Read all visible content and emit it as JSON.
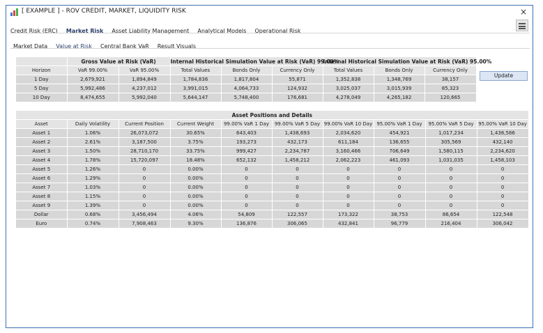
{
  "window": {
    "title": "[ EXAMPLE ] - ROV CREDIT, MARKET, LIQUIDITY RISK",
    "close_glyph": "×"
  },
  "main_tabs": [
    {
      "label": "Credit Risk (ERC)",
      "active": false
    },
    {
      "label": "Market Risk",
      "active": true
    },
    {
      "label": "Asset Liability Management",
      "active": false
    },
    {
      "label": "Analytical Models",
      "active": false
    },
    {
      "label": "Operational Risk",
      "active": false
    }
  ],
  "sub_tabs": [
    {
      "label": "Market Data",
      "active": false
    },
    {
      "label": "Value at Risk",
      "active": true
    },
    {
      "label": "Central Bank VaR",
      "active": false
    },
    {
      "label": "Result Visuals",
      "active": false
    }
  ],
  "var_table": {
    "group_headers": [
      "Gross Value at Risk (VaR)",
      "Internal Historical Simulation Value at Risk (VaR) 99.00%",
      "Internal Historical Simulation Value at Risk (VaR) 95.00%"
    ],
    "columns": [
      "Horizon",
      "VaR 99.00%",
      "VaR 95.00%",
      "Total Values",
      "Bonds Only",
      "Currency Only",
      "Total Values",
      "Bonds Only",
      "Currency Only"
    ],
    "rows": [
      [
        "1 Day",
        "2,679,921",
        "1,894,849",
        "1,784,836",
        "1,817,804",
        "55,871",
        "1,352,838",
        "1,348,769",
        "38,157"
      ],
      [
        "5 Day",
        "5,992,486",
        "4,237,012",
        "3,991,015",
        "4,064,733",
        "124,932",
        "3,025,037",
        "3,015,939",
        "85,323"
      ],
      [
        "10 Day",
        "8,474,655",
        "5,992,040",
        "5,644,147",
        "5,748,400",
        "176,681",
        "4,278,049",
        "4,265,182",
        "120,665"
      ]
    ]
  },
  "update_button": "Update",
  "asset_table": {
    "title": "Asset Positions and Details",
    "columns": [
      "Asset",
      "Daily Volatility",
      "Current Position",
      "Current Weight",
      "99.00% VaR 1 Day",
      "99.00% VaR 5 Day",
      "99.00% VaR 10 Day",
      "95.00% VaR 1 Day",
      "95.00% VaR 5 Day",
      "95.00% VaR 10 Day"
    ],
    "rows": [
      [
        "Asset 1",
        "1.06%",
        "26,073,072",
        "30.65%",
        "643,403",
        "1,438,693",
        "2,034,620",
        "454,921",
        "1,017,234",
        "1,438,586"
      ],
      [
        "Asset 2",
        "2.61%",
        "3,187,500",
        "3.75%",
        "193,273",
        "432,173",
        "611,184",
        "136,655",
        "305,569",
        "432,140"
      ],
      [
        "Asset 3",
        "1.50%",
        "28,710,170",
        "33.75%",
        "999,427",
        "2,234,787",
        "3,160,466",
        "706,649",
        "1,580,115",
        "2,234,620"
      ],
      [
        "Asset 4",
        "1.78%",
        "15,720,097",
        "18.48%",
        "652,132",
        "1,458,212",
        "2,062,223",
        "461,093",
        "1,031,035",
        "1,458,103"
      ],
      [
        "Asset 5",
        "1.26%",
        "0",
        "0.00%",
        "0",
        "0",
        "0",
        "0",
        "0",
        "0"
      ],
      [
        "Asset 6",
        "1.29%",
        "0",
        "0.00%",
        "0",
        "0",
        "0",
        "0",
        "0",
        "0"
      ],
      [
        "Asset 7",
        "1.03%",
        "0",
        "0.00%",
        "0",
        "0",
        "0",
        "0",
        "0",
        "0"
      ],
      [
        "Asset 8",
        "1.15%",
        "0",
        "0.00%",
        "0",
        "0",
        "0",
        "0",
        "0",
        "0"
      ],
      [
        "Asset 9",
        "1.39%",
        "0",
        "0.00%",
        "0",
        "0",
        "0",
        "0",
        "0",
        "0"
      ],
      [
        "Dollar",
        "0.68%",
        "3,456,494",
        "4.06%",
        "54,809",
        "122,557",
        "173,322",
        "38,753",
        "86,654",
        "122,548"
      ],
      [
        "Euro",
        "0.74%",
        "7,908,463",
        "9.30%",
        "136,876",
        "306,065",
        "432,841",
        "96,779",
        "216,404",
        "306,042"
      ]
    ]
  }
}
